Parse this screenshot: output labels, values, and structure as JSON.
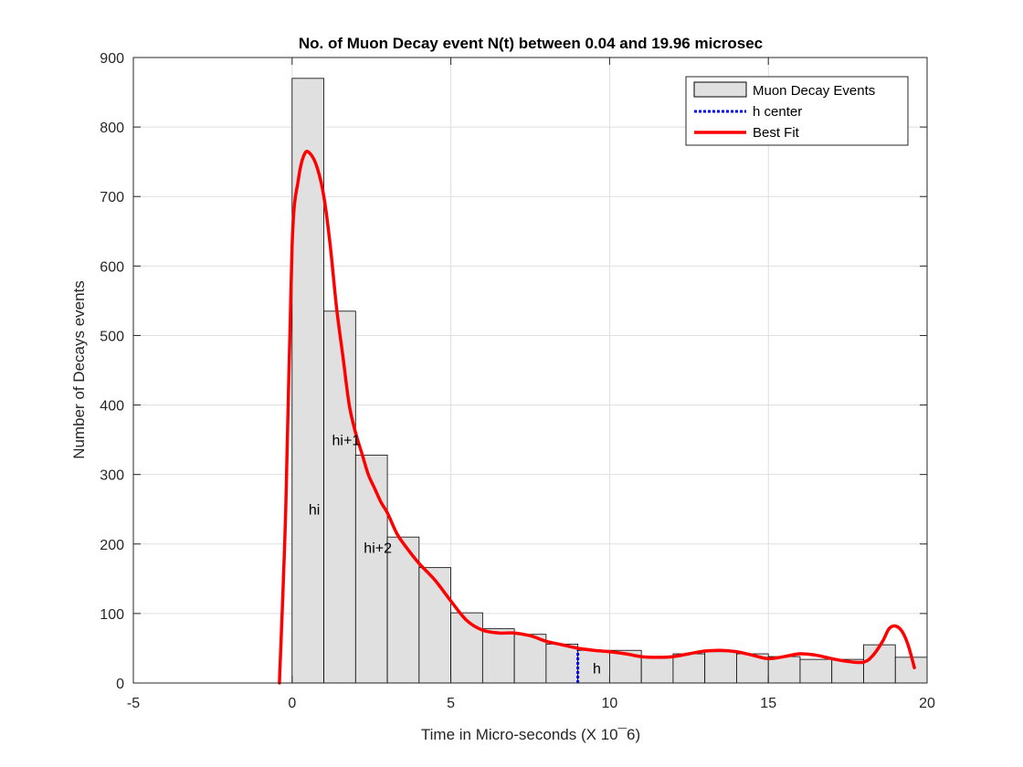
{
  "chart_data": {
    "type": "bar",
    "title": "No. of Muon Decay event N(t) between 0.04 and 19.96 microsec",
    "xlabel": "Time in Micro-seconds (X 10¯6)",
    "ylabel": "Number of Decays events",
    "xlim": [
      -5,
      20
    ],
    "ylim": [
      0,
      900
    ],
    "xticks": [
      -5,
      0,
      5,
      10,
      15,
      20
    ],
    "yticks": [
      0,
      100,
      200,
      300,
      400,
      500,
      600,
      700,
      800,
      900
    ],
    "grid": true,
    "legend_position": "top-right",
    "bin_width": 1,
    "bins": {
      "name": "Muon Decay Events",
      "color": "#e0e0e0",
      "edge_color": "#000000",
      "left_edges": [
        0,
        1,
        2,
        3,
        4,
        5,
        6,
        7,
        8,
        9,
        10,
        11,
        12,
        13,
        14,
        15,
        16,
        17,
        18,
        19
      ],
      "values": [
        870,
        535,
        328,
        210,
        166,
        101,
        78,
        70,
        56,
        47,
        47,
        36,
        42,
        45,
        42,
        38,
        34,
        34,
        55,
        37
      ]
    },
    "h_center": {
      "name": "h center",
      "color": "#0000ff",
      "x": 9,
      "y_range": [
        0,
        47
      ]
    },
    "fit": {
      "name": "Best Fit",
      "color": "#ff0000",
      "x": [
        -0.4,
        -0.2,
        0,
        0.2,
        0.4,
        0.6,
        0.8,
        1.0,
        1.2,
        1.4,
        1.6,
        1.8,
        2.0,
        2.2,
        2.4,
        2.6,
        2.8,
        3.0,
        3.3,
        3.6,
        4.0,
        4.5,
        5.0,
        5.5,
        6.0,
        6.5,
        7.0,
        7.5,
        8.0,
        8.5,
        9.0,
        9.5,
        10.0,
        10.5,
        11.0,
        11.5,
        12.0,
        12.5,
        13.0,
        13.5,
        14.0,
        14.5,
        15.0,
        15.5,
        16.0,
        16.5,
        17.0,
        17.5,
        18.0,
        18.3,
        18.6,
        18.8,
        19.0,
        19.2,
        19.4,
        19.6
      ],
      "y": [
        0,
        250,
        630,
        725,
        762,
        760,
        740,
        700,
        630,
        540,
        470,
        400,
        360,
        330,
        300,
        280,
        260,
        245,
        215,
        195,
        172,
        148,
        118,
        90,
        76,
        72,
        72,
        68,
        60,
        55,
        50,
        47,
        45,
        42,
        38,
        37,
        38,
        42,
        46,
        47,
        45,
        40,
        35,
        38,
        42,
        40,
        35,
        31,
        30,
        40,
        60,
        78,
        82,
        75,
        55,
        22
      ]
    },
    "annotations": [
      {
        "text": "hi",
        "x": 0.7,
        "y": 250
      },
      {
        "text": "hi+1",
        "x": 1.7,
        "y": 350
      },
      {
        "text": "hi+2",
        "x": 2.7,
        "y": 195
      },
      {
        "text": "h",
        "x": 9.6,
        "y": 22
      }
    ]
  }
}
